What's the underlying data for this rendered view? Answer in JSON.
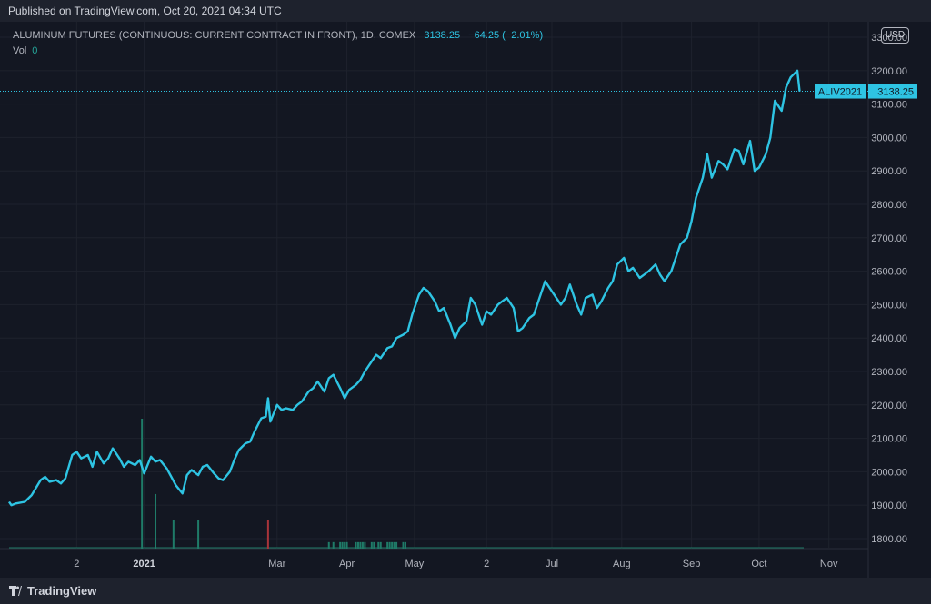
{
  "header": {
    "published": "Published on TradingView.com, Oct 20, 2021 04:34 UTC"
  },
  "legend": {
    "title": "ALUMINUM FUTURES (CONTINUOUS: CURRENT CONTRACT IN FRONT), 1D, COMEX",
    "last": "3138.25",
    "change": "−64.25 (−2.01%)",
    "vol_label": "Vol",
    "vol_value": "0"
  },
  "currency_button": "USD",
  "price_label": {
    "symbol": "ALIV2021",
    "value": "3138.25"
  },
  "footer": {
    "brand": "TradingView"
  },
  "colors": {
    "line": "#2ec4e3",
    "bg": "#131722",
    "grid": "#1e222d",
    "axis_text": "#b2b5be",
    "vol_up": "#1f7b68",
    "vol_down": "#a8343a"
  },
  "chart_data": {
    "type": "line",
    "ylim": [
      1770,
      3330
    ],
    "y_ticks": [
      1800,
      1900,
      2000,
      2100,
      2200,
      2300,
      2400,
      2500,
      2600,
      2700,
      2800,
      2900,
      3000,
      3100,
      3200,
      3300
    ],
    "x_ticks": [
      {
        "label": "2",
        "x": "2020-12-02",
        "bold": false
      },
      {
        "label": "2021",
        "x": "2021-01-01",
        "bold": true
      },
      {
        "label": "Mar",
        "x": "2021-03-01",
        "bold": false
      },
      {
        "label": "Apr",
        "x": "2021-04-01",
        "bold": false
      },
      {
        "label": "May",
        "x": "2021-05-01",
        "bold": false
      },
      {
        "label": "2",
        "x": "2021-06-02",
        "bold": false
      },
      {
        "label": "Jul",
        "x": "2021-07-01",
        "bold": false
      },
      {
        "label": "Aug",
        "x": "2021-08-01",
        "bold": false
      },
      {
        "label": "Sep",
        "x": "2021-09-01",
        "bold": false
      },
      {
        "label": "Oct",
        "x": "2021-10-01",
        "bold": false
      },
      {
        "label": "Nov",
        "x": "2021-11-01",
        "bold": false
      }
    ],
    "series": [
      {
        "values": [
          [
            "2020-11-02",
            1910
          ],
          [
            "2020-11-03",
            1900
          ],
          [
            "2020-11-05",
            1905
          ],
          [
            "2020-11-09",
            1910
          ],
          [
            "2020-11-12",
            1930
          ],
          [
            "2020-11-16",
            1975
          ],
          [
            "2020-11-18",
            1985
          ],
          [
            "2020-11-20",
            1970
          ],
          [
            "2020-11-23",
            1975
          ],
          [
            "2020-11-25",
            1965
          ],
          [
            "2020-11-27",
            1980
          ],
          [
            "2020-11-30",
            2050
          ],
          [
            "2020-12-02",
            2060
          ],
          [
            "2020-12-04",
            2040
          ],
          [
            "2020-12-07",
            2050
          ],
          [
            "2020-12-09",
            2015
          ],
          [
            "2020-12-11",
            2060
          ],
          [
            "2020-12-14",
            2025
          ],
          [
            "2020-12-16",
            2040
          ],
          [
            "2020-12-18",
            2070
          ],
          [
            "2020-12-21",
            2040
          ],
          [
            "2020-12-23",
            2015
          ],
          [
            "2020-12-25",
            2030
          ],
          [
            "2020-12-28",
            2020
          ],
          [
            "2020-12-30",
            2035
          ],
          [
            "2021-01-01",
            1995
          ],
          [
            "2021-01-04",
            2045
          ],
          [
            "2021-01-06",
            2030
          ],
          [
            "2021-01-08",
            2035
          ],
          [
            "2021-01-11",
            2010
          ],
          [
            "2021-01-13",
            1985
          ],
          [
            "2021-01-15",
            1960
          ],
          [
            "2021-01-18",
            1935
          ],
          [
            "2021-01-20",
            1990
          ],
          [
            "2021-01-22",
            2005
          ],
          [
            "2021-01-25",
            1990
          ],
          [
            "2021-01-27",
            2015
          ],
          [
            "2021-01-29",
            2020
          ],
          [
            "2021-02-01",
            1995
          ],
          [
            "2021-02-03",
            1980
          ],
          [
            "2021-02-05",
            1975
          ],
          [
            "2021-02-08",
            2000
          ],
          [
            "2021-02-10",
            2035
          ],
          [
            "2021-02-12",
            2065
          ],
          [
            "2021-02-15",
            2085
          ],
          [
            "2021-02-17",
            2090
          ],
          [
            "2021-02-19",
            2120
          ],
          [
            "2021-02-22",
            2160
          ],
          [
            "2021-02-24",
            2165
          ],
          [
            "2021-02-25",
            2220
          ],
          [
            "2021-02-26",
            2150
          ],
          [
            "2021-03-01",
            2200
          ],
          [
            "2021-03-03",
            2185
          ],
          [
            "2021-03-05",
            2190
          ],
          [
            "2021-03-08",
            2185
          ],
          [
            "2021-03-10",
            2200
          ],
          [
            "2021-03-12",
            2210
          ],
          [
            "2021-03-15",
            2240
          ],
          [
            "2021-03-17",
            2250
          ],
          [
            "2021-03-19",
            2270
          ],
          [
            "2021-03-22",
            2240
          ],
          [
            "2021-03-24",
            2280
          ],
          [
            "2021-03-26",
            2290
          ],
          [
            "2021-03-29",
            2250
          ],
          [
            "2021-03-31",
            2220
          ],
          [
            "2021-04-02",
            2245
          ],
          [
            "2021-04-05",
            2260
          ],
          [
            "2021-04-07",
            2275
          ],
          [
            "2021-04-09",
            2300
          ],
          [
            "2021-04-12",
            2330
          ],
          [
            "2021-04-14",
            2350
          ],
          [
            "2021-04-16",
            2340
          ],
          [
            "2021-04-19",
            2370
          ],
          [
            "2021-04-21",
            2375
          ],
          [
            "2021-04-23",
            2400
          ],
          [
            "2021-04-26",
            2410
          ],
          [
            "2021-04-28",
            2420
          ],
          [
            "2021-04-30",
            2470
          ],
          [
            "2021-05-03",
            2530
          ],
          [
            "2021-05-05",
            2550
          ],
          [
            "2021-05-07",
            2540
          ],
          [
            "2021-05-10",
            2510
          ],
          [
            "2021-05-12",
            2480
          ],
          [
            "2021-05-14",
            2490
          ],
          [
            "2021-05-17",
            2440
          ],
          [
            "2021-05-19",
            2400
          ],
          [
            "2021-05-21",
            2430
          ],
          [
            "2021-05-24",
            2450
          ],
          [
            "2021-05-26",
            2520
          ],
          [
            "2021-05-28",
            2500
          ],
          [
            "2021-05-31",
            2440
          ],
          [
            "2021-06-02",
            2480
          ],
          [
            "2021-06-04",
            2470
          ],
          [
            "2021-06-07",
            2500
          ],
          [
            "2021-06-09",
            2510
          ],
          [
            "2021-06-11",
            2520
          ],
          [
            "2021-06-14",
            2490
          ],
          [
            "2021-06-16",
            2420
          ],
          [
            "2021-06-18",
            2430
          ],
          [
            "2021-06-21",
            2460
          ],
          [
            "2021-06-23",
            2470
          ],
          [
            "2021-06-25",
            2510
          ],
          [
            "2021-06-28",
            2570
          ],
          [
            "2021-06-30",
            2550
          ],
          [
            "2021-07-02",
            2530
          ],
          [
            "2021-07-05",
            2500
          ],
          [
            "2021-07-07",
            2520
          ],
          [
            "2021-07-09",
            2560
          ],
          [
            "2021-07-12",
            2500
          ],
          [
            "2021-07-14",
            2470
          ],
          [
            "2021-07-16",
            2520
          ],
          [
            "2021-07-19",
            2530
          ],
          [
            "2021-07-21",
            2490
          ],
          [
            "2021-07-23",
            2510
          ],
          [
            "2021-07-26",
            2550
          ],
          [
            "2021-07-28",
            2570
          ],
          [
            "2021-07-30",
            2620
          ],
          [
            "2021-08-02",
            2640
          ],
          [
            "2021-08-04",
            2600
          ],
          [
            "2021-08-06",
            2610
          ],
          [
            "2021-08-09",
            2580
          ],
          [
            "2021-08-11",
            2590
          ],
          [
            "2021-08-13",
            2600
          ],
          [
            "2021-08-16",
            2620
          ],
          [
            "2021-08-18",
            2590
          ],
          [
            "2021-08-20",
            2570
          ],
          [
            "2021-08-23",
            2600
          ],
          [
            "2021-08-25",
            2640
          ],
          [
            "2021-08-27",
            2680
          ],
          [
            "2021-08-30",
            2700
          ],
          [
            "2021-09-01",
            2750
          ],
          [
            "2021-09-03",
            2820
          ],
          [
            "2021-09-06",
            2880
          ],
          [
            "2021-09-08",
            2950
          ],
          [
            "2021-09-10",
            2880
          ],
          [
            "2021-09-13",
            2930
          ],
          [
            "2021-09-15",
            2920
          ],
          [
            "2021-09-17",
            2905
          ],
          [
            "2021-09-20",
            2965
          ],
          [
            "2021-09-22",
            2960
          ],
          [
            "2021-09-24",
            2920
          ],
          [
            "2021-09-27",
            2990
          ],
          [
            "2021-09-29",
            2900
          ],
          [
            "2021-10-01",
            2910
          ],
          [
            "2021-10-04",
            2950
          ],
          [
            "2021-10-06",
            3000
          ],
          [
            "2021-10-08",
            3110
          ],
          [
            "2021-10-11",
            3080
          ],
          [
            "2021-10-13",
            3150
          ],
          [
            "2021-10-15",
            3180
          ],
          [
            "2021-10-18",
            3200
          ],
          [
            "2021-10-19",
            3138.25
          ]
        ]
      }
    ],
    "volume": [
      {
        "x": "2020-12-31",
        "value": 100,
        "dir": "up"
      },
      {
        "x": "2021-01-06",
        "value": 42,
        "dir": "up"
      },
      {
        "x": "2021-01-14",
        "value": 22,
        "dir": "up"
      },
      {
        "x": "2021-01-25",
        "value": 22,
        "dir": "up"
      },
      {
        "x": "2021-02-25",
        "value": 22,
        "dir": "down"
      },
      {
        "x": "2021-03-24",
        "value": 5,
        "dir": "up"
      },
      {
        "x": "2021-03-26",
        "value": 5,
        "dir": "up"
      },
      {
        "x": "2021-03-29",
        "value": 5,
        "dir": "up"
      },
      {
        "x": "2021-03-30",
        "value": 5,
        "dir": "up"
      },
      {
        "x": "2021-03-31",
        "value": 5,
        "dir": "up"
      },
      {
        "x": "2021-04-01",
        "value": 5,
        "dir": "up"
      },
      {
        "x": "2021-04-05",
        "value": 5,
        "dir": "up"
      },
      {
        "x": "2021-04-06",
        "value": 5,
        "dir": "up"
      },
      {
        "x": "2021-04-07",
        "value": 5,
        "dir": "up"
      },
      {
        "x": "2021-04-08",
        "value": 5,
        "dir": "up"
      },
      {
        "x": "2021-04-09",
        "value": 5,
        "dir": "up"
      },
      {
        "x": "2021-04-12",
        "value": 5,
        "dir": "up"
      },
      {
        "x": "2021-04-13",
        "value": 5,
        "dir": "up"
      },
      {
        "x": "2021-04-15",
        "value": 5,
        "dir": "up"
      },
      {
        "x": "2021-04-16",
        "value": 5,
        "dir": "up"
      },
      {
        "x": "2021-04-19",
        "value": 5,
        "dir": "up"
      },
      {
        "x": "2021-04-20",
        "value": 5,
        "dir": "up"
      },
      {
        "x": "2021-04-21",
        "value": 5,
        "dir": "up"
      },
      {
        "x": "2021-04-22",
        "value": 5,
        "dir": "up"
      },
      {
        "x": "2021-04-23",
        "value": 5,
        "dir": "up"
      },
      {
        "x": "2021-04-26",
        "value": 5,
        "dir": "up"
      },
      {
        "x": "2021-04-27",
        "value": 5,
        "dir": "up"
      }
    ],
    "last_value": 3138.25
  }
}
